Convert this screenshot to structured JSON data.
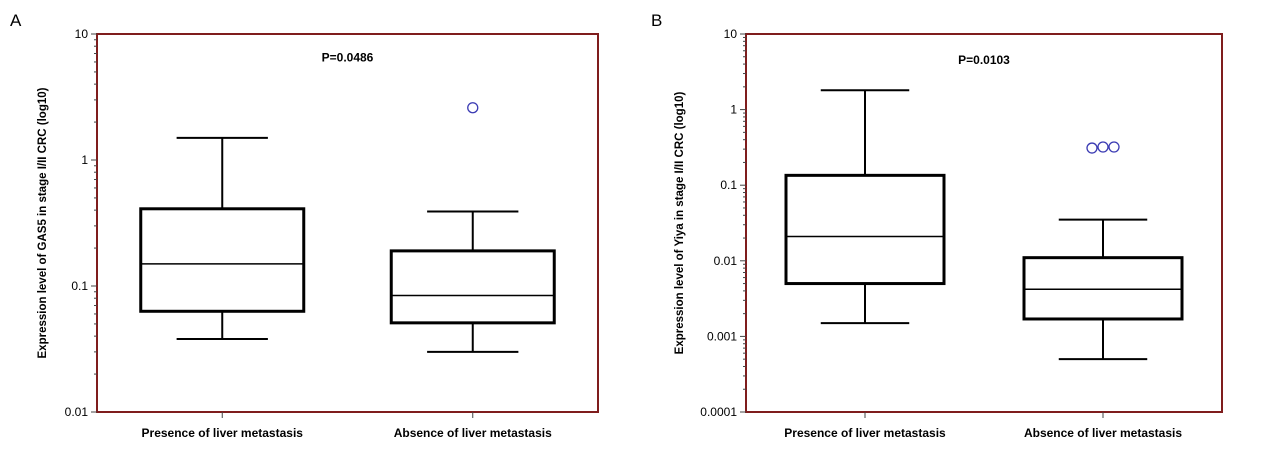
{
  "figure": {
    "colors": {
      "frame": "#7f1d1d",
      "box": "#000000",
      "outlier": "#3b3bb3",
      "text": "#000000",
      "background": "#ffffff"
    }
  },
  "chart_data": [
    {
      "type": "box",
      "panel_label": "A",
      "ylabel": "Expression level of GAS5 in stage I/II CRC (log10)",
      "xlabel": "",
      "y_scale": "log",
      "ylim": [
        0.01,
        10
      ],
      "yticks": [
        0.01,
        0.1,
        1,
        10
      ],
      "ytick_labels": [
        "0.01",
        "0.1",
        "1",
        "10"
      ],
      "annotation": "P=0.0486",
      "annotation_pos": [
        0.5,
        6.5
      ],
      "categories": [
        "Presence of liver metastasis",
        "Absence of liver metastasis"
      ],
      "boxes": [
        {
          "category": "Presence of liver metastasis",
          "min": 0.038,
          "q1": 0.063,
          "median": 0.15,
          "q3": 0.41,
          "max": 1.5,
          "outliers": []
        },
        {
          "category": "Absence of liver metastasis",
          "min": 0.03,
          "q1": 0.051,
          "median": 0.084,
          "q3": 0.19,
          "max": 0.39,
          "outliers": [
            2.6
          ]
        }
      ]
    },
    {
      "type": "box",
      "panel_label": "B",
      "ylabel": "Expression level of Yiya in stage I/II CRC (log10)",
      "xlabel": "",
      "y_scale": "log",
      "ylim": [
        0.0001,
        10
      ],
      "yticks": [
        0.0001,
        0.001,
        0.01,
        0.1,
        1,
        10
      ],
      "ytick_labels": [
        "0.0001",
        "0.001",
        "0.01",
        "0.1",
        "1",
        "10"
      ],
      "annotation": "P=0.0103",
      "annotation_pos": [
        0.5,
        4.5
      ],
      "categories": [
        "Presence of liver metastasis",
        "Absence of liver metastasis"
      ],
      "boxes": [
        {
          "category": "Presence of liver metastasis",
          "min": 0.0015,
          "q1": 0.005,
          "median": 0.021,
          "q3": 0.135,
          "max": 1.8,
          "outliers": []
        },
        {
          "category": "Absence of liver metastasis",
          "min": 0.0005,
          "q1": 0.0017,
          "median": 0.0042,
          "q3": 0.011,
          "max": 0.035,
          "outliers": [
            0.31,
            0.32,
            0.32
          ]
        }
      ]
    }
  ]
}
